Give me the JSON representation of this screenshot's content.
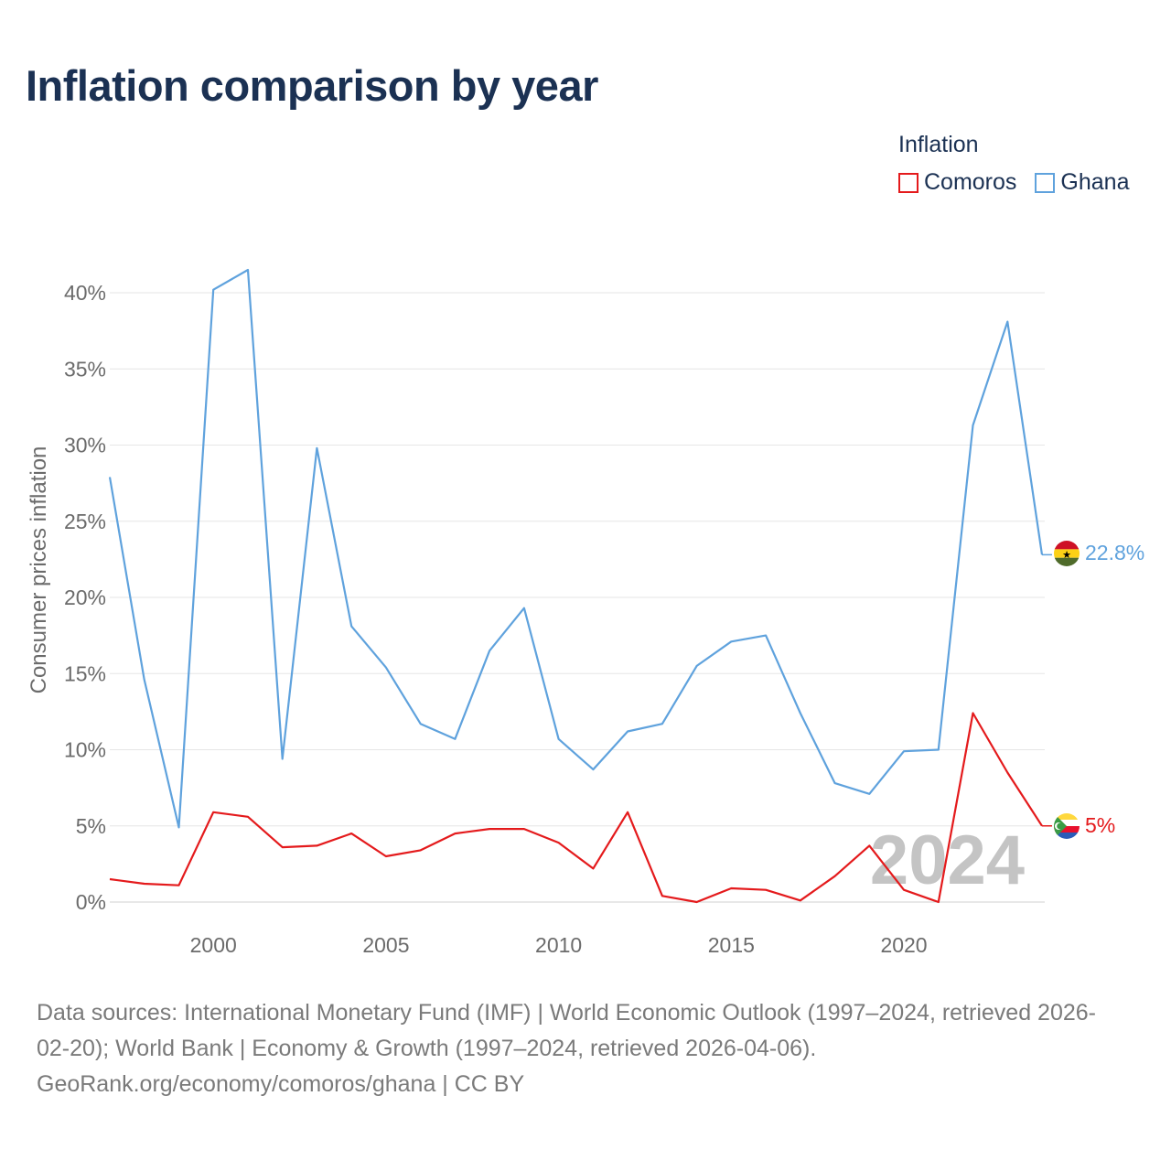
{
  "title": "Inflation comparison by year",
  "legend": {
    "title": "Inflation",
    "items": [
      {
        "label": "Comoros",
        "color": "#e41a1c"
      },
      {
        "label": "Ghana",
        "color": "#5fa2dd"
      }
    ]
  },
  "chart_data": {
    "type": "line",
    "title": "Inflation comparison by year",
    "xlabel": "",
    "ylabel": "Consumer prices inflation",
    "x": [
      1997,
      1998,
      1999,
      2000,
      2001,
      2002,
      2003,
      2004,
      2005,
      2006,
      2007,
      2008,
      2009,
      2010,
      2011,
      2012,
      2013,
      2014,
      2015,
      2016,
      2017,
      2018,
      2019,
      2020,
      2021,
      2022,
      2023,
      2024
    ],
    "xlim": [
      1997,
      2024
    ],
    "ylim": [
      0,
      42
    ],
    "x_ticks": [
      2000,
      2005,
      2010,
      2015,
      2020
    ],
    "y_ticks": [
      0,
      5,
      10,
      15,
      20,
      25,
      30,
      35,
      40
    ],
    "y_tick_labels": [
      "0%",
      "5%",
      "10%",
      "15%",
      "20%",
      "25%",
      "30%",
      "35%",
      "40%"
    ],
    "grid": true,
    "year_watermark": "2024",
    "series": [
      {
        "name": "Ghana",
        "color": "#5fa2dd",
        "values": [
          27.9,
          14.6,
          4.9,
          40.2,
          41.5,
          9.4,
          29.8,
          18.1,
          15.4,
          11.7,
          10.7,
          16.5,
          19.3,
          10.7,
          8.7,
          11.2,
          11.7,
          15.5,
          17.1,
          17.5,
          12.4,
          7.8,
          7.1,
          9.9,
          10.0,
          31.3,
          38.1,
          22.8
        ],
        "end_label": "22.8%",
        "flag": "ghana"
      },
      {
        "name": "Comoros",
        "color": "#e41a1c",
        "values": [
          1.5,
          1.2,
          1.1,
          5.9,
          5.6,
          3.6,
          3.7,
          4.5,
          3.0,
          3.4,
          4.5,
          4.8,
          4.8,
          3.9,
          2.2,
          5.9,
          0.4,
          0.0,
          0.9,
          0.8,
          0.1,
          1.7,
          3.7,
          0.8,
          0.0,
          12.4,
          8.5,
          5.0
        ],
        "end_label": "5%",
        "flag": "comoros"
      }
    ]
  },
  "footer": {
    "line1": "Data sources: International Monetary Fund (IMF) | World Economic Outlook (1997–2024, retrieved 2026-",
    "line2": "02-20); World Bank | Economy & Growth (1997–2024, retrieved 2026-04-06).",
    "line3": "GeoRank.org/economy/comoros/ghana | CC BY"
  }
}
